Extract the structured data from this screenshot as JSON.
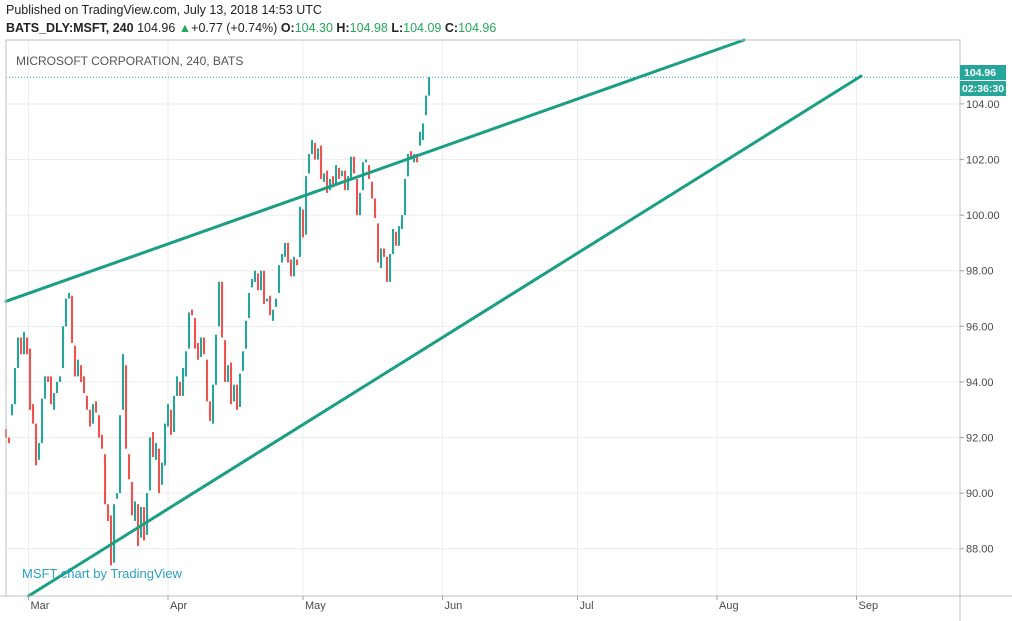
{
  "header": {
    "published": "Published on TradingView.com, July 13, 2018 14:53 UTC",
    "symbol": "BATS_DLY:MSFT, 240",
    "last": "104.96",
    "change": "+0.77 (+0.74%)",
    "o_label": "O:",
    "o": "104.30",
    "h_label": "H:",
    "h": "104.98",
    "l_label": "L:",
    "l": "104.09",
    "c_label": "C:",
    "c": "104.96"
  },
  "chart_data": {
    "type": "candlestick",
    "title": "MICROSOFT CORPORATION, 240, BATS",
    "watermark": "MSFT chart by TradingView",
    "y_ticks": [
      "88.00",
      "90.00",
      "92.00",
      "94.00",
      "96.00",
      "98.00",
      "100.00",
      "102.00",
      "104.00"
    ],
    "y_tick_values": [
      88,
      90,
      92,
      94,
      96,
      98,
      100,
      102,
      104
    ],
    "ylim": [
      86.3,
      106.3
    ],
    "x_ticks": [
      "Mar",
      "Apr",
      "May",
      "Jun",
      "Jul",
      "Aug",
      "Sep"
    ],
    "x_tick_dates": [
      "2018-03-01",
      "2018-04-01",
      "2018-05-01",
      "2018-06-01",
      "2018-07-01",
      "2018-08-01",
      "2018-09-01"
    ],
    "xlim": [
      "2018-02-24",
      "2018-09-24"
    ],
    "last_price": "104.96",
    "countdown": "02:36:30",
    "colors": {
      "up": "#26a69a",
      "down": "#ef5350",
      "trendline": "#1a9e84",
      "grid": "#e9eef0",
      "badge": "#26a69a"
    },
    "trendlines": [
      {
        "name": "upper",
        "from": {
          "date": "2018-02-24",
          "value": 96.9
        },
        "to": {
          "date": "2018-08-07",
          "value": 106.3
        }
      },
      {
        "name": "lower",
        "from": {
          "date": "2018-03-01",
          "value": 86.3
        },
        "to": {
          "date": "2018-09-02",
          "value": 105.0
        }
      }
    ],
    "series_step_days": 0.6667,
    "series_start": "2018-02-24",
    "series": [
      [
        92.3,
        92.0
      ],
      [
        92.0,
        91.8
      ],
      [
        92.8,
        93.2
      ],
      [
        93.2,
        94.5
      ],
      [
        94.5,
        95.6
      ],
      [
        95.6,
        95.0
      ],
      [
        95.0,
        95.8
      ],
      [
        95.6,
        95.0
      ],
      [
        95.2,
        93.0
      ],
      [
        93.2,
        92.5
      ],
      [
        92.5,
        91.0
      ],
      [
        91.2,
        91.8
      ],
      [
        91.8,
        93.4
      ],
      [
        93.4,
        94.2
      ],
      [
        94.2,
        94.0
      ],
      [
        94.2,
        93.2
      ],
      [
        93.0,
        93.6
      ],
      [
        93.6,
        94.0
      ],
      [
        94.0,
        94.2
      ],
      [
        94.5,
        96.0
      ],
      [
        96.0,
        97.0
      ],
      [
        97.0,
        97.2
      ],
      [
        97.1,
        95.4
      ],
      [
        95.3,
        94.2
      ],
      [
        94.2,
        94.8
      ],
      [
        94.6,
        94.0
      ],
      [
        94.2,
        93.6
      ],
      [
        93.5,
        93.0
      ],
      [
        93.0,
        92.4
      ],
      [
        92.5,
        93.2
      ],
      [
        93.3,
        92.9
      ],
      [
        92.8,
        92.0
      ],
      [
        92.1,
        91.6
      ],
      [
        91.4,
        89.6
      ],
      [
        89.6,
        89.0
      ],
      [
        89.2,
        87.4
      ],
      [
        87.5,
        89.6
      ],
      [
        89.8,
        90.0
      ],
      [
        90.0,
        92.8
      ],
      [
        93.0,
        95.0
      ],
      [
        94.6,
        91.6
      ],
      [
        91.4,
        90.5
      ],
      [
        90.4,
        89.2
      ],
      [
        89.0,
        89.7
      ],
      [
        89.6,
        88.1
      ],
      [
        88.4,
        89.5
      ],
      [
        89.5,
        88.3
      ],
      [
        88.5,
        90.0
      ],
      [
        90.1,
        92.0
      ],
      [
        92.2,
        91.3
      ],
      [
        91.2,
        91.8
      ],
      [
        91.6,
        90.0
      ],
      [
        90.3,
        91.1
      ],
      [
        91.0,
        92.5
      ],
      [
        92.4,
        93.2
      ],
      [
        93.0,
        92.1
      ],
      [
        92.2,
        93.5
      ],
      [
        93.5,
        94.2
      ],
      [
        94.0,
        93.5
      ],
      [
        93.5,
        94.5
      ],
      [
        94.2,
        95.1
      ],
      [
        95.2,
        96.5
      ],
      [
        96.6,
        96.4
      ],
      [
        96.3,
        95.2
      ],
      [
        95.4,
        94.8
      ],
      [
        94.9,
        95.6
      ],
      [
        95.6,
        95.0
      ],
      [
        94.8,
        93.3
      ],
      [
        93.3,
        92.6
      ],
      [
        92.5,
        93.9
      ],
      [
        93.9,
        95.7
      ],
      [
        96.0,
        97.6
      ],
      [
        97.6,
        95.6
      ],
      [
        95.5,
        94.0
      ],
      [
        94.0,
        94.6
      ],
      [
        94.7,
        93.2
      ],
      [
        93.3,
        93.9
      ],
      [
        93.9,
        93.0
      ],
      [
        93.1,
        94.3
      ],
      [
        94.4,
        95.1
      ],
      [
        95.2,
        96.2
      ],
      [
        96.3,
        97.2
      ],
      [
        97.4,
        97.7
      ],
      [
        97.6,
        98.0
      ],
      [
        97.9,
        97.3
      ],
      [
        97.3,
        98.0
      ],
      [
        98.0,
        96.8
      ],
      [
        96.9,
        97.0
      ],
      [
        97.1,
        96.4
      ],
      [
        96.2,
        96.6
      ],
      [
        96.7,
        97.0
      ],
      [
        97.2,
        98.2
      ],
      [
        98.3,
        98.6
      ],
      [
        98.5,
        99.0
      ],
      [
        99.0,
        98.3
      ],
      [
        98.4,
        97.8
      ],
      [
        97.8,
        98.5
      ],
      [
        98.4,
        98.2
      ],
      [
        98.5,
        100.3
      ],
      [
        100.2,
        99.2
      ],
      [
        99.3,
        101.4
      ],
      [
        101.5,
        102.2
      ],
      [
        102.2,
        102.7
      ],
      [
        102.6,
        102.0
      ],
      [
        102.0,
        102.4
      ],
      [
        102.5,
        101.3
      ],
      [
        101.2,
        101.5
      ],
      [
        101.6,
        100.8
      ],
      [
        100.9,
        101.3
      ],
      [
        101.4,
        101.0
      ],
      [
        101.1,
        101.8
      ],
      [
        101.7,
        101.3
      ],
      [
        101.4,
        101.6
      ],
      [
        101.6,
        100.9
      ],
      [
        100.9,
        101.4
      ],
      [
        101.3,
        102.1
      ],
      [
        102.1,
        101.5
      ],
      [
        101.3,
        100.0
      ],
      [
        100.0,
        100.8
      ],
      [
        100.9,
        101.9
      ],
      [
        101.9,
        102.0
      ],
      [
        101.8,
        101.3
      ],
      [
        101.2,
        100.6
      ],
      [
        100.6,
        99.9
      ],
      [
        99.7,
        98.3
      ],
      [
        98.1,
        98.8
      ],
      [
        98.8,
        98.5
      ],
      [
        98.5,
        97.6
      ],
      [
        97.6,
        98.6
      ],
      [
        98.6,
        99.5
      ],
      [
        99.4,
        98.9
      ],
      [
        98.9,
        99.6
      ],
      [
        99.5,
        100.0
      ],
      [
        100.0,
        101.3
      ],
      [
        101.4,
        102.2
      ],
      [
        102.3,
        102.0
      ],
      [
        101.9,
        102.2
      ],
      [
        102.2,
        101.9
      ],
      [
        102.5,
        103.0
      ],
      [
        102.7,
        103.3
      ],
      [
        103.6,
        104.3
      ],
      [
        104.3,
        104.96
      ]
    ]
  }
}
